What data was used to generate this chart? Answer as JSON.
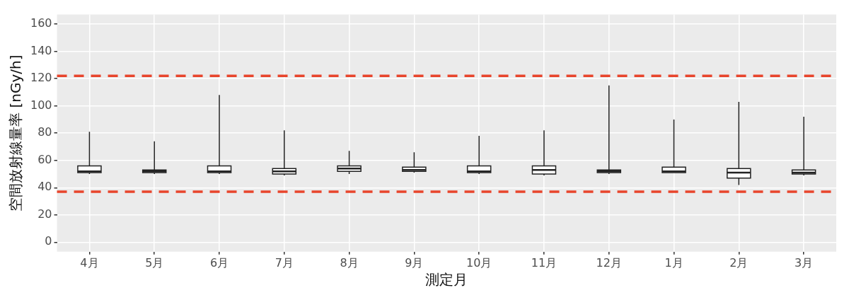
{
  "chart_data": {
    "type": "box",
    "xlabel": "測定月",
    "ylabel": "空間放射線量率 [nGy/h]",
    "categories": [
      "4月",
      "5月",
      "6月",
      "7月",
      "8月",
      "9月",
      "10月",
      "11月",
      "12月",
      "1月",
      "2月",
      "3月"
    ],
    "boxes": [
      {
        "low": 50,
        "q1": 51,
        "median": 52,
        "q3": 56,
        "high": 81
      },
      {
        "low": 50,
        "q1": 51,
        "median": 52,
        "q3": 53,
        "high": 74
      },
      {
        "low": 50,
        "q1": 51,
        "median": 52,
        "q3": 56,
        "high": 108
      },
      {
        "low": 49,
        "q1": 50,
        "median": 52,
        "q3": 54,
        "high": 82
      },
      {
        "low": 50,
        "q1": 52,
        "median": 54,
        "q3": 56,
        "high": 67
      },
      {
        "low": 51,
        "q1": 52,
        "median": 53,
        "q3": 55,
        "high": 66
      },
      {
        "low": 50,
        "q1": 51,
        "median": 52,
        "q3": 56,
        "high": 78
      },
      {
        "low": 49,
        "q1": 50,
        "median": 53,
        "q3": 56,
        "high": 82
      },
      {
        "low": 50,
        "q1": 51,
        "median": 52,
        "q3": 53,
        "high": 115
      },
      {
        "low": 51,
        "q1": 51,
        "median": 52,
        "q3": 55,
        "high": 90
      },
      {
        "low": 42,
        "q1": 47,
        "median": 51,
        "q3": 54,
        "high": 103
      },
      {
        "low": 49,
        "q1": 50,
        "median": 51,
        "q3": 53,
        "high": 92
      }
    ],
    "color": "#ffffff",
    "ylim": [
      -7,
      167
    ],
    "yticks": [
      0,
      20,
      40,
      60,
      80,
      100,
      120,
      140,
      160
    ],
    "grid": true,
    "ref_lines": [
      {
        "axis": "y",
        "value": 122,
        "color": "#e8452c",
        "line_style": "dashed"
      },
      {
        "axis": "y",
        "value": 37,
        "color": "#e8452c",
        "line_style": "dashed"
      }
    ]
  }
}
